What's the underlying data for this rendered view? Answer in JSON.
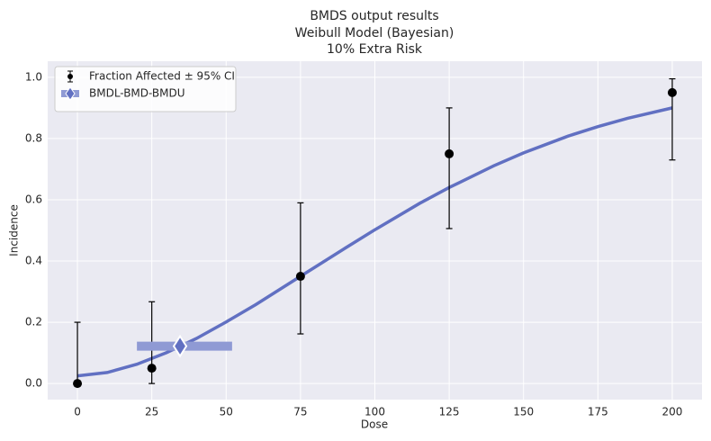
{
  "chart_data": {
    "type": "dose-response",
    "title_lines": [
      "BMDS output results",
      "Weibull Model (Bayesian)",
      "10% Extra Risk"
    ],
    "xlabel": "Dose",
    "ylabel": "Incidence",
    "xlim": [
      -10,
      210
    ],
    "ylim": [
      -0.0525,
      1.0525
    ],
    "xticks": [
      0,
      25,
      50,
      75,
      100,
      125,
      150,
      175,
      200
    ],
    "yticks": [
      {
        "value": 0,
        "label": "0.0"
      },
      {
        "value": 0.2,
        "label": "0.2"
      },
      {
        "value": 0.4,
        "label": "0.4"
      },
      {
        "value": 0.6,
        "label": "0.6"
      },
      {
        "value": 0.8,
        "label": "0.8"
      },
      {
        "value": 1,
        "label": "1.0"
      }
    ],
    "grid": true,
    "legend": "upper-left",
    "series": [
      {
        "type": "curve",
        "color": "#6170c2",
        "x": [
          0,
          10,
          20,
          30,
          40,
          50,
          60,
          75,
          90,
          100,
          115,
          125,
          140,
          150,
          165,
          175,
          185,
          200
        ],
        "values": [
          0.025,
          0.036,
          0.063,
          0.101,
          0.147,
          0.201,
          0.258,
          0.35,
          0.442,
          0.502,
          0.588,
          0.64,
          0.711,
          0.753,
          0.808,
          0.839,
          0.866,
          0.9
        ]
      },
      {
        "type": "errorbar",
        "name": "Fraction Affected ± 95% CI",
        "color": "#000000",
        "x": [
          0,
          25,
          75,
          125,
          200
        ],
        "values": [
          0,
          0.05,
          0.35,
          0.75,
          0.95
        ],
        "ci_lower": [
          0,
          0,
          0.162,
          0.506,
          0.73
        ],
        "ci_upper": [
          0.2,
          0.267,
          0.59,
          0.9,
          0.995
        ]
      },
      {
        "type": "bmd",
        "name": "BMDL-BMD-BMDU",
        "color": "#8f9ad4",
        "marker_color": "#6170c2",
        "bmdl": 20,
        "bmd": 34.5,
        "bmdu": 52,
        "y": 0.122
      }
    ]
  }
}
